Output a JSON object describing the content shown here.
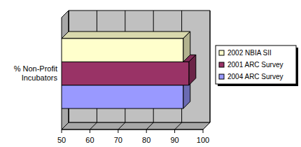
{
  "chart_data": {
    "type": "bar",
    "orientation": "horizontal",
    "categories": [
      "% Non-Profit Incubators"
    ],
    "series": [
      {
        "name": "2002 NBIA SII",
        "color": "#ffffcc",
        "values": [
          93
        ]
      },
      {
        "name": "2001 ARC Survey",
        "color": "#993366",
        "values": [
          95
        ]
      },
      {
        "name": "2004 ARC Survey",
        "color": "#9999ff",
        "values": [
          93
        ]
      }
    ],
    "xlim": [
      50,
      100
    ],
    "xticks": [
      50,
      60,
      70,
      80,
      90,
      100
    ],
    "grid": true,
    "legend": "right"
  }
}
